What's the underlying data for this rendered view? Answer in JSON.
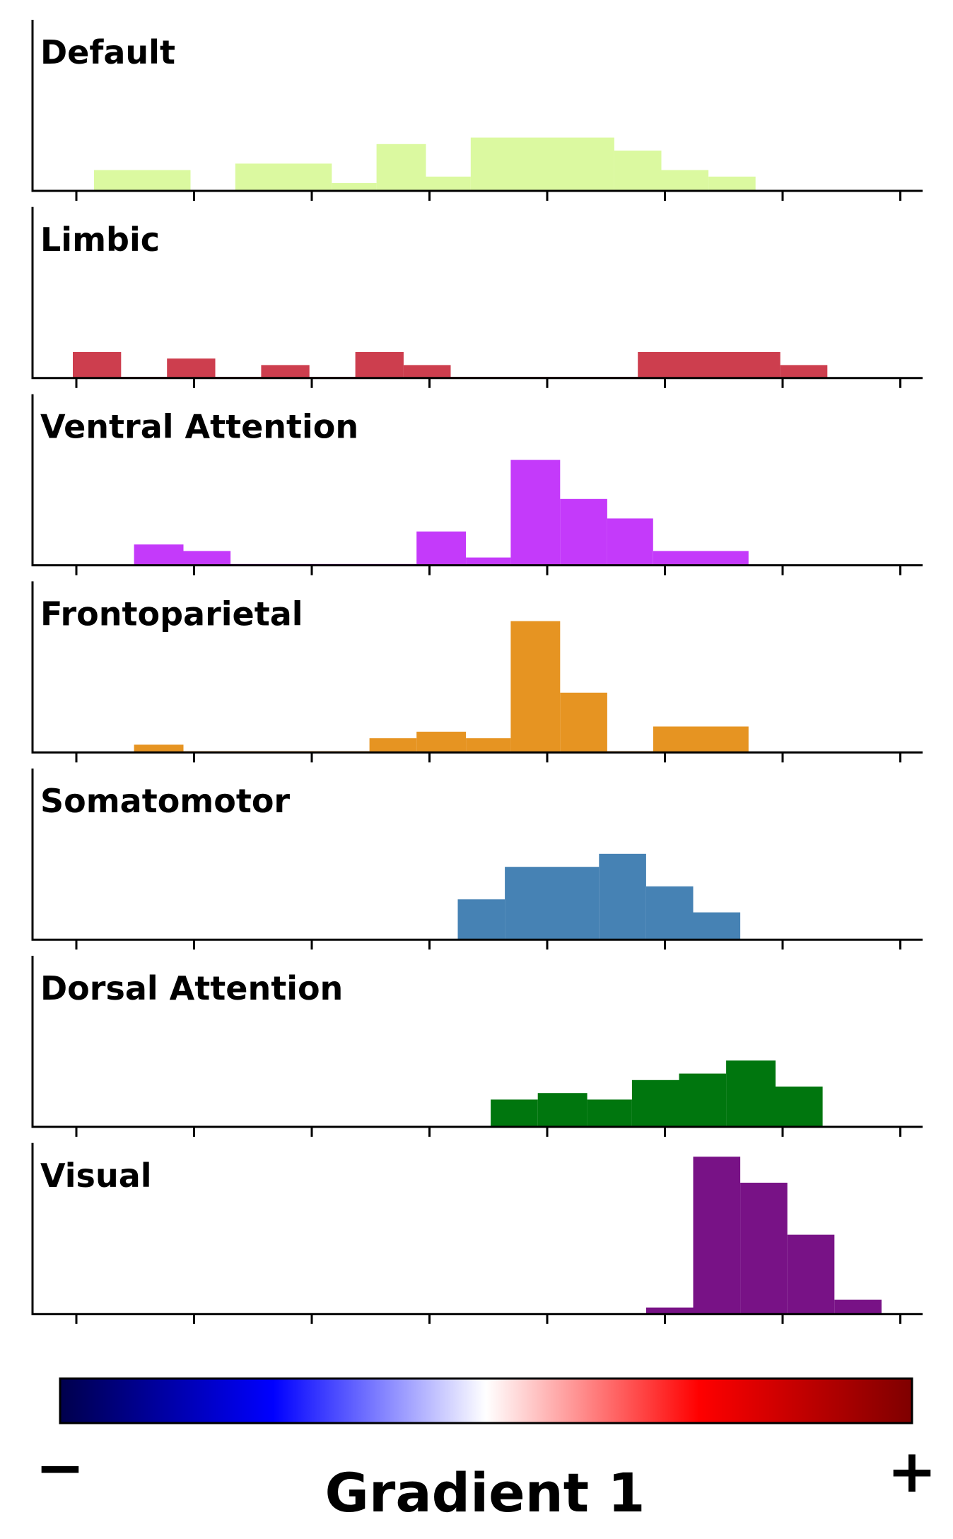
{
  "chart_data": {
    "type": "bar",
    "subtype": "stacked-histograms",
    "xlabel": "Gradient 1",
    "colorbar": {
      "min_label": "−",
      "max_label": "+",
      "colors": [
        "#00004c",
        "#0000ff",
        "#ffffff",
        "#ff0000",
        "#7f0000"
      ]
    },
    "xlim": [
      -0.65,
      6.9
    ],
    "x_ticks": [
      0,
      1,
      2,
      3,
      4,
      5,
      6,
      7
    ],
    "ylim": [
      0,
      12.5
    ],
    "panels": [
      {
        "name": "Default",
        "color": "#dbf9a0",
        "bins": [
          {
            "x0": 0.15,
            "x1": 0.97,
            "value": 1.6
          },
          {
            "x0": 1.35,
            "x1": 2.17,
            "value": 2.1
          },
          {
            "x0": 2.17,
            "x1": 2.55,
            "value": 0.6
          },
          {
            "x0": 2.55,
            "x1": 2.97,
            "value": 3.6
          },
          {
            "x0": 2.97,
            "x1": 3.35,
            "value": 1.1
          },
          {
            "x0": 3.35,
            "x1": 4.57,
            "value": 4.1
          },
          {
            "x0": 4.57,
            "x1": 4.97,
            "value": 3.1
          },
          {
            "x0": 4.97,
            "x1": 5.37,
            "value": 1.6
          },
          {
            "x0": 5.37,
            "x1": 5.77,
            "value": 1.1
          }
        ]
      },
      {
        "name": "Limbic",
        "color": "#cd3e4e",
        "bins": [
          {
            "x0": -0.03,
            "x1": 0.38,
            "value": 2.0
          },
          {
            "x0": 0.38,
            "x1": 0.77,
            "value": 0.1
          },
          {
            "x0": 0.77,
            "x1": 1.18,
            "value": 1.5
          },
          {
            "x0": 1.18,
            "x1": 1.57,
            "value": 0.1
          },
          {
            "x0": 1.57,
            "x1": 1.98,
            "value": 1.0
          },
          {
            "x0": 1.98,
            "x1": 2.37,
            "value": 0.1
          },
          {
            "x0": 2.37,
            "x1": 2.78,
            "value": 2.0
          },
          {
            "x0": 2.78,
            "x1": 3.18,
            "value": 1.0
          },
          {
            "x0": 3.18,
            "x1": 4.77,
            "value": 0.1
          },
          {
            "x0": 4.77,
            "x1": 5.98,
            "value": 2.0
          },
          {
            "x0": 5.98,
            "x1": 6.38,
            "value": 1.0
          }
        ]
      },
      {
        "name": "Ventral Attention",
        "color": "#c43afa",
        "bins": [
          {
            "x0": 0.49,
            "x1": 0.91,
            "value": 1.6
          },
          {
            "x0": 0.91,
            "x1": 1.31,
            "value": 1.1
          },
          {
            "x0": 1.31,
            "x1": 2.89,
            "value": 0.1
          },
          {
            "x0": 2.89,
            "x1": 3.31,
            "value": 2.6
          },
          {
            "x0": 3.31,
            "x1": 3.69,
            "value": 0.6
          },
          {
            "x0": 3.69,
            "x1": 4.11,
            "value": 8.1
          },
          {
            "x0": 4.11,
            "x1": 4.51,
            "value": 5.1
          },
          {
            "x0": 4.51,
            "x1": 4.9,
            "value": 3.6
          },
          {
            "x0": 4.9,
            "x1": 5.71,
            "value": 1.1
          }
        ]
      },
      {
        "name": "Frontoparietal",
        "color": "#e69422",
        "bins": [
          {
            "x0": 0.49,
            "x1": 0.91,
            "value": 0.6
          },
          {
            "x0": 0.91,
            "x1": 2.49,
            "value": 0.1
          },
          {
            "x0": 2.49,
            "x1": 2.89,
            "value": 1.1
          },
          {
            "x0": 2.89,
            "x1": 3.31,
            "value": 1.6
          },
          {
            "x0": 3.31,
            "x1": 3.69,
            "value": 1.1
          },
          {
            "x0": 3.69,
            "x1": 4.11,
            "value": 10.1
          },
          {
            "x0": 4.11,
            "x1": 4.51,
            "value": 4.6
          },
          {
            "x0": 4.51,
            "x1": 4.9,
            "value": 0.1
          },
          {
            "x0": 4.9,
            "x1": 5.71,
            "value": 2.0
          }
        ]
      },
      {
        "name": "Somatomotor",
        "color": "#4682b4",
        "bins": [
          {
            "x0": 3.24,
            "x1": 3.64,
            "value": 3.1
          },
          {
            "x0": 3.64,
            "x1": 4.44,
            "value": 5.6
          },
          {
            "x0": 4.44,
            "x1": 4.84,
            "value": 6.6
          },
          {
            "x0": 4.84,
            "x1": 5.24,
            "value": 4.1
          },
          {
            "x0": 5.24,
            "x1": 5.64,
            "value": 2.1
          }
        ]
      },
      {
        "name": "Dorsal Attention",
        "color": "#00760e",
        "bins": [
          {
            "x0": 3.52,
            "x1": 3.92,
            "value": 2.1
          },
          {
            "x0": 3.92,
            "x1": 4.34,
            "value": 2.6
          },
          {
            "x0": 4.34,
            "x1": 4.72,
            "value": 2.1
          },
          {
            "x0": 4.72,
            "x1": 5.12,
            "value": 3.6
          },
          {
            "x0": 5.12,
            "x1": 5.52,
            "value": 4.1
          },
          {
            "x0": 5.52,
            "x1": 5.94,
            "value": 5.1
          },
          {
            "x0": 5.94,
            "x1": 6.34,
            "value": 3.1
          }
        ]
      },
      {
        "name": "Visual",
        "color": "#781286",
        "bins": [
          {
            "x0": 4.84,
            "x1": 5.24,
            "value": 0.5
          },
          {
            "x0": 5.24,
            "x1": 5.64,
            "value": 12.1
          },
          {
            "x0": 5.64,
            "x1": 6.04,
            "value": 10.1
          },
          {
            "x0": 6.04,
            "x1": 6.44,
            "value": 6.1
          },
          {
            "x0": 6.44,
            "x1": 6.84,
            "value": 1.1
          }
        ]
      }
    ]
  }
}
